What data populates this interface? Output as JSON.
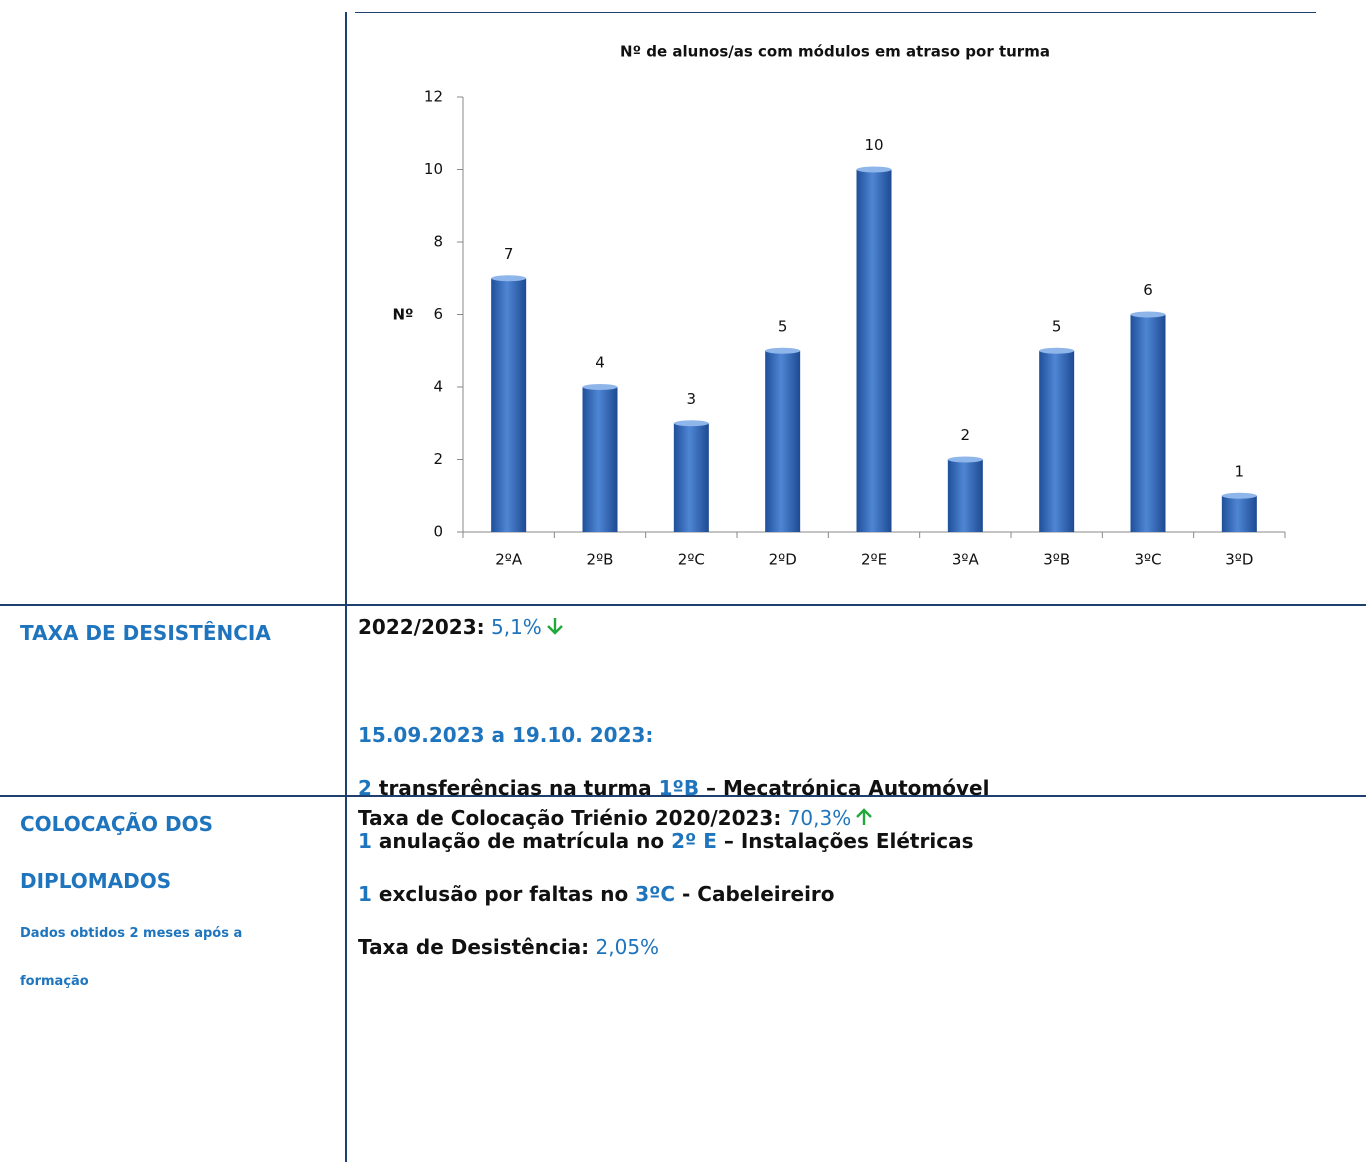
{
  "chart_data": {
    "type": "bar",
    "title": "Nº de alunos/as com módulos em atraso por turma",
    "y_label": "Nº",
    "categories": [
      "2ºA",
      "2ºB",
      "2ºC",
      "2ºD",
      "2ºE",
      "3ºA",
      "3ºB",
      "3ºC",
      "3ºD"
    ],
    "values": [
      7,
      4,
      3,
      5,
      10,
      2,
      5,
      6,
      1
    ],
    "color": "#3a6fc0",
    "ylim": [
      0,
      12
    ],
    "yticks": [
      0,
      2,
      4,
      6,
      8,
      10,
      12
    ],
    "grid": false
  },
  "table": {
    "rows": [
      {
        "heading": [
          "TAXA DE DESISTÊNCIA"
        ],
        "note": [],
        "lines": [
          {
            "segments": [
              {
                "text": "2022/2023:",
                "style": "label"
              },
              {
                "text": " 5,1%",
                "style": "value"
              }
            ],
            "trend": "down",
            "gap_after": true
          },
          {
            "segments": [
              {
                "text": "15.09.2023 a 19.10. 2023:",
                "style": "key"
              }
            ]
          },
          {
            "segments": [
              {
                "text": "2",
                "style": "key"
              },
              {
                "text": " transferências na turma ",
                "style": "label"
              },
              {
                "text": "1ºB",
                "style": "key"
              },
              {
                "text": " – Mecatrónica Automóvel",
                "style": "label"
              }
            ]
          },
          {
            "segments": [
              {
                "text": "1",
                "style": "key"
              },
              {
                "text": " anulação de matrícula no ",
                "style": "label"
              },
              {
                "text": "2º E",
                "style": "key"
              },
              {
                "text": " – Instalações Elétricas",
                "style": "label"
              }
            ]
          },
          {
            "segments": [
              {
                "text": "1",
                "style": "key"
              },
              {
                "text": " exclusão por faltas no ",
                "style": "label"
              },
              {
                "text": "3ºC",
                "style": "key"
              },
              {
                "text": " - Cabeleireiro",
                "style": "label"
              }
            ]
          },
          {
            "segments": [
              {
                "text": "Taxa de Desistência:",
                "style": "label"
              },
              {
                "text": " 2,05%",
                "style": "value"
              }
            ]
          }
        ]
      },
      {
        "heading": [
          "COLOCAÇÃO DOS",
          "DIPLOMADOS"
        ],
        "note": [
          "Dados obtidos 2 meses após a",
          "formação"
        ],
        "lines": [
          {
            "segments": [
              {
                "text": "Taxa de Colocação Triénio 2020/2023:",
                "style": "label"
              },
              {
                "text": " 70,3%",
                "style": "value"
              }
            ],
            "trend": "up"
          }
        ]
      }
    ]
  }
}
